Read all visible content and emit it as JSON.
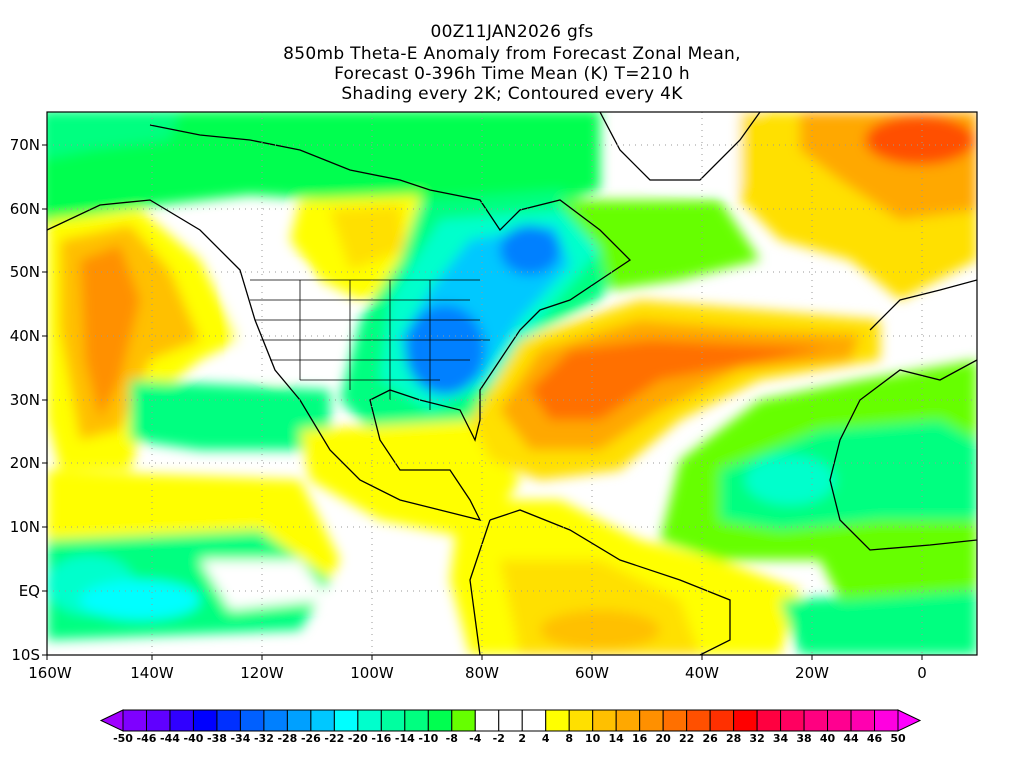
{
  "title": {
    "line1": "00Z11JAN2026 gfs",
    "line2": "850mb Theta-E Anomaly from Forecast Zonal Mean,",
    "line3": "Forecast 0-396h Time Mean (K) T=210 h",
    "line4": "Shading every 2K; Contoured every 4K"
  },
  "map": {
    "lat_labels": [
      "70N",
      "60N",
      "50N",
      "40N",
      "30N",
      "20N",
      "10N",
      "EQ",
      "10S"
    ],
    "lon_labels": [
      "160W",
      "140W",
      "120W",
      "100W",
      "80W",
      "60W",
      "40W",
      "20W",
      "0"
    ]
  },
  "colorbar": {
    "labels": [
      "-50",
      "-46",
      "-44",
      "-40",
      "-38",
      "-34",
      "-32",
      "-28",
      "-26",
      "-22",
      "-20",
      "-16",
      "-14",
      "-10",
      "-8",
      "-4",
      "-2",
      "2",
      "4",
      "8",
      "10",
      "14",
      "16",
      "20",
      "22",
      "26",
      "28",
      "32",
      "34",
      "38",
      "40",
      "44",
      "46",
      "50"
    ],
    "colors": [
      "#7f00ff",
      "#6000ff",
      "#3000ff",
      "#0000ff",
      "#0030ff",
      "#0060ff",
      "#0080ff",
      "#00a0ff",
      "#00c8ff",
      "#00ffff",
      "#00ffcc",
      "#00ffa0",
      "#00ff80",
      "#00ff50",
      "#66ff00",
      "#ffffff",
      "#ffffff",
      "#ffffff",
      "#ffff00",
      "#ffe000",
      "#ffc000",
      "#ffa800",
      "#ff9000",
      "#ff7000",
      "#ff5000",
      "#ff3000",
      "#ff0000",
      "#ff0040",
      "#ff0060",
      "#ff0080",
      "#ff0090",
      "#ff00b0",
      "#ff00e0"
    ],
    "low_arrow_color": "#a000ff",
    "high_arrow_color": "#ff00ff"
  }
}
